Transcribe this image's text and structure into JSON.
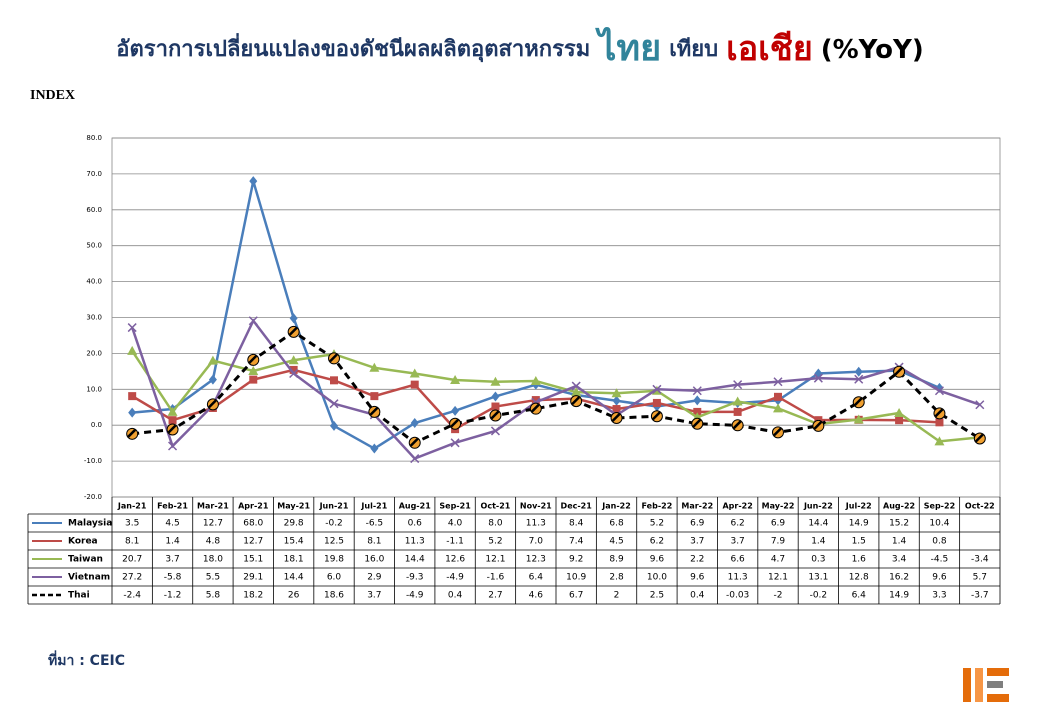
{
  "chart_data": {
    "type": "line",
    "title": [
      {
        "text": "อัตราการเปลี่ยนแปลงของดัชนีผลผลิตอุตสาหกรรม",
        "color": "#1f3864"
      },
      {
        "text": "ไทย",
        "color": "#31849b"
      },
      {
        "text": "เทียบ",
        "color": "#1f3864"
      },
      {
        "text": "เอเชีย",
        "color": "#c00000"
      },
      {
        "text": "(%YoY)",
        "color": "#000000"
      }
    ],
    "y_label": "INDEX",
    "source": "ที่มา : CEIC",
    "categories": [
      "Jan-21",
      "Feb-21",
      "Mar-21",
      "Apr-21",
      "May-21",
      "Jun-21",
      "Jul-21",
      "Aug-21",
      "Sep-21",
      "Oct-21",
      "Nov-21",
      "Dec-21",
      "Jan-22",
      "Feb-22",
      "Mar-22",
      "Apr-22",
      "May-22",
      "Jun-22",
      "Jul-22",
      "Aug-22",
      "Sep-22",
      "Oct-22"
    ],
    "ylim": [
      -20,
      80
    ],
    "yticks": [
      {
        "value": -20,
        "label": "-20.0"
      },
      {
        "value": -10,
        "label": "-10.0"
      },
      {
        "value": 0,
        "label": "0.0"
      },
      {
        "value": 10,
        "label": "10.0"
      },
      {
        "value": 20,
        "label": "20.0"
      },
      {
        "value": 30,
        "label": "30.0"
      },
      {
        "value": 40,
        "label": "40.0"
      },
      {
        "value": 50,
        "label": "50.0"
      },
      {
        "value": 60,
        "label": "60.0"
      },
      {
        "value": 70,
        "label": "70.0"
      },
      {
        "value": 80,
        "label": "80.0"
      }
    ],
    "grid": true,
    "series": [
      {
        "name": "Malaysia",
        "color": "#4a7ebb",
        "marker": "diamond",
        "dash": false,
        "values": [
          3.5,
          4.5,
          12.7,
          68.0,
          29.8,
          -0.2,
          -6.5,
          0.6,
          4.0,
          8.0,
          11.3,
          8.4,
          6.8,
          5.2,
          6.9,
          6.2,
          6.9,
          14.4,
          14.9,
          15.2,
          10.4,
          null
        ],
        "value_labels": [
          "3.5",
          "4.5",
          "12.7",
          "68.0",
          "29.8",
          "-0.2",
          "-6.5",
          "0.6",
          "4.0",
          "8.0",
          "11.3",
          "8.4",
          "6.8",
          "5.2",
          "6.9",
          "6.2",
          "6.9",
          "14.4",
          "14.9",
          "15.2",
          "10.4",
          null
        ]
      },
      {
        "name": "Korea",
        "color": "#be4b48",
        "marker": "square",
        "dash": false,
        "values": [
          8.1,
          1.4,
          4.8,
          12.7,
          15.4,
          12.5,
          8.1,
          11.3,
          -1.1,
          5.2,
          7.0,
          7.4,
          4.5,
          6.2,
          3.7,
          3.7,
          7.9,
          1.4,
          1.5,
          1.4,
          0.8,
          null
        ],
        "value_labels": [
          "8.1",
          "1.4",
          "4.8",
          "12.7",
          "15.4",
          "12.5",
          "8.1",
          "11.3",
          "-1.1",
          "5.2",
          "7.0",
          "7.4",
          "4.5",
          "6.2",
          "3.7",
          "3.7",
          "7.9",
          "1.4",
          "1.5",
          "1.4",
          "0.8",
          null
        ]
      },
      {
        "name": "Taiwan",
        "color": "#98b954",
        "marker": "triangle",
        "dash": false,
        "values": [
          20.7,
          3.7,
          18.0,
          15.1,
          18.1,
          19.8,
          16.0,
          14.4,
          12.6,
          12.1,
          12.3,
          9.2,
          8.9,
          9.6,
          2.2,
          6.6,
          4.7,
          0.3,
          1.6,
          3.4,
          -4.5,
          -3.4
        ],
        "value_labels": [
          "20.7",
          "3.7",
          "18.0",
          "15.1",
          "18.1",
          "19.8",
          "16.0",
          "14.4",
          "12.6",
          "12.1",
          "12.3",
          "9.2",
          "8.9",
          "9.6",
          "2.2",
          "6.6",
          "4.7",
          "0.3",
          "1.6",
          "3.4",
          "-4.5",
          "-3.4"
        ]
      },
      {
        "name": "Vietnam",
        "color": "#7d60a0",
        "marker": "x",
        "dash": false,
        "values": [
          27.2,
          -5.8,
          5.5,
          29.1,
          14.4,
          6.0,
          2.9,
          -9.3,
          -4.9,
          -1.6,
          6.4,
          10.9,
          2.8,
          10.0,
          9.6,
          11.3,
          12.1,
          13.1,
          12.8,
          16.2,
          9.6,
          5.7
        ],
        "value_labels": [
          "27.2",
          "-5.8",
          "5.5",
          "29.1",
          "14.4",
          "6.0",
          "2.9",
          "-9.3",
          "-4.9",
          "-1.6",
          "6.4",
          "10.9",
          "2.8",
          "10.0",
          "9.6",
          "11.3",
          "12.1",
          "13.1",
          "12.8",
          "16.2",
          "9.6",
          "5.7"
        ]
      },
      {
        "name": "Thai",
        "color": "#000000",
        "marker": "circle",
        "marker_color": "#f0a030",
        "dash": true,
        "values": [
          -2.4,
          -1.2,
          5.8,
          18.2,
          26,
          18.6,
          3.7,
          -4.9,
          0.4,
          2.7,
          4.6,
          6.7,
          2,
          2.5,
          0.4,
          -0.03,
          -2,
          -0.2,
          6.4,
          14.9,
          3.3,
          -3.7
        ]
      }
    ]
  }
}
